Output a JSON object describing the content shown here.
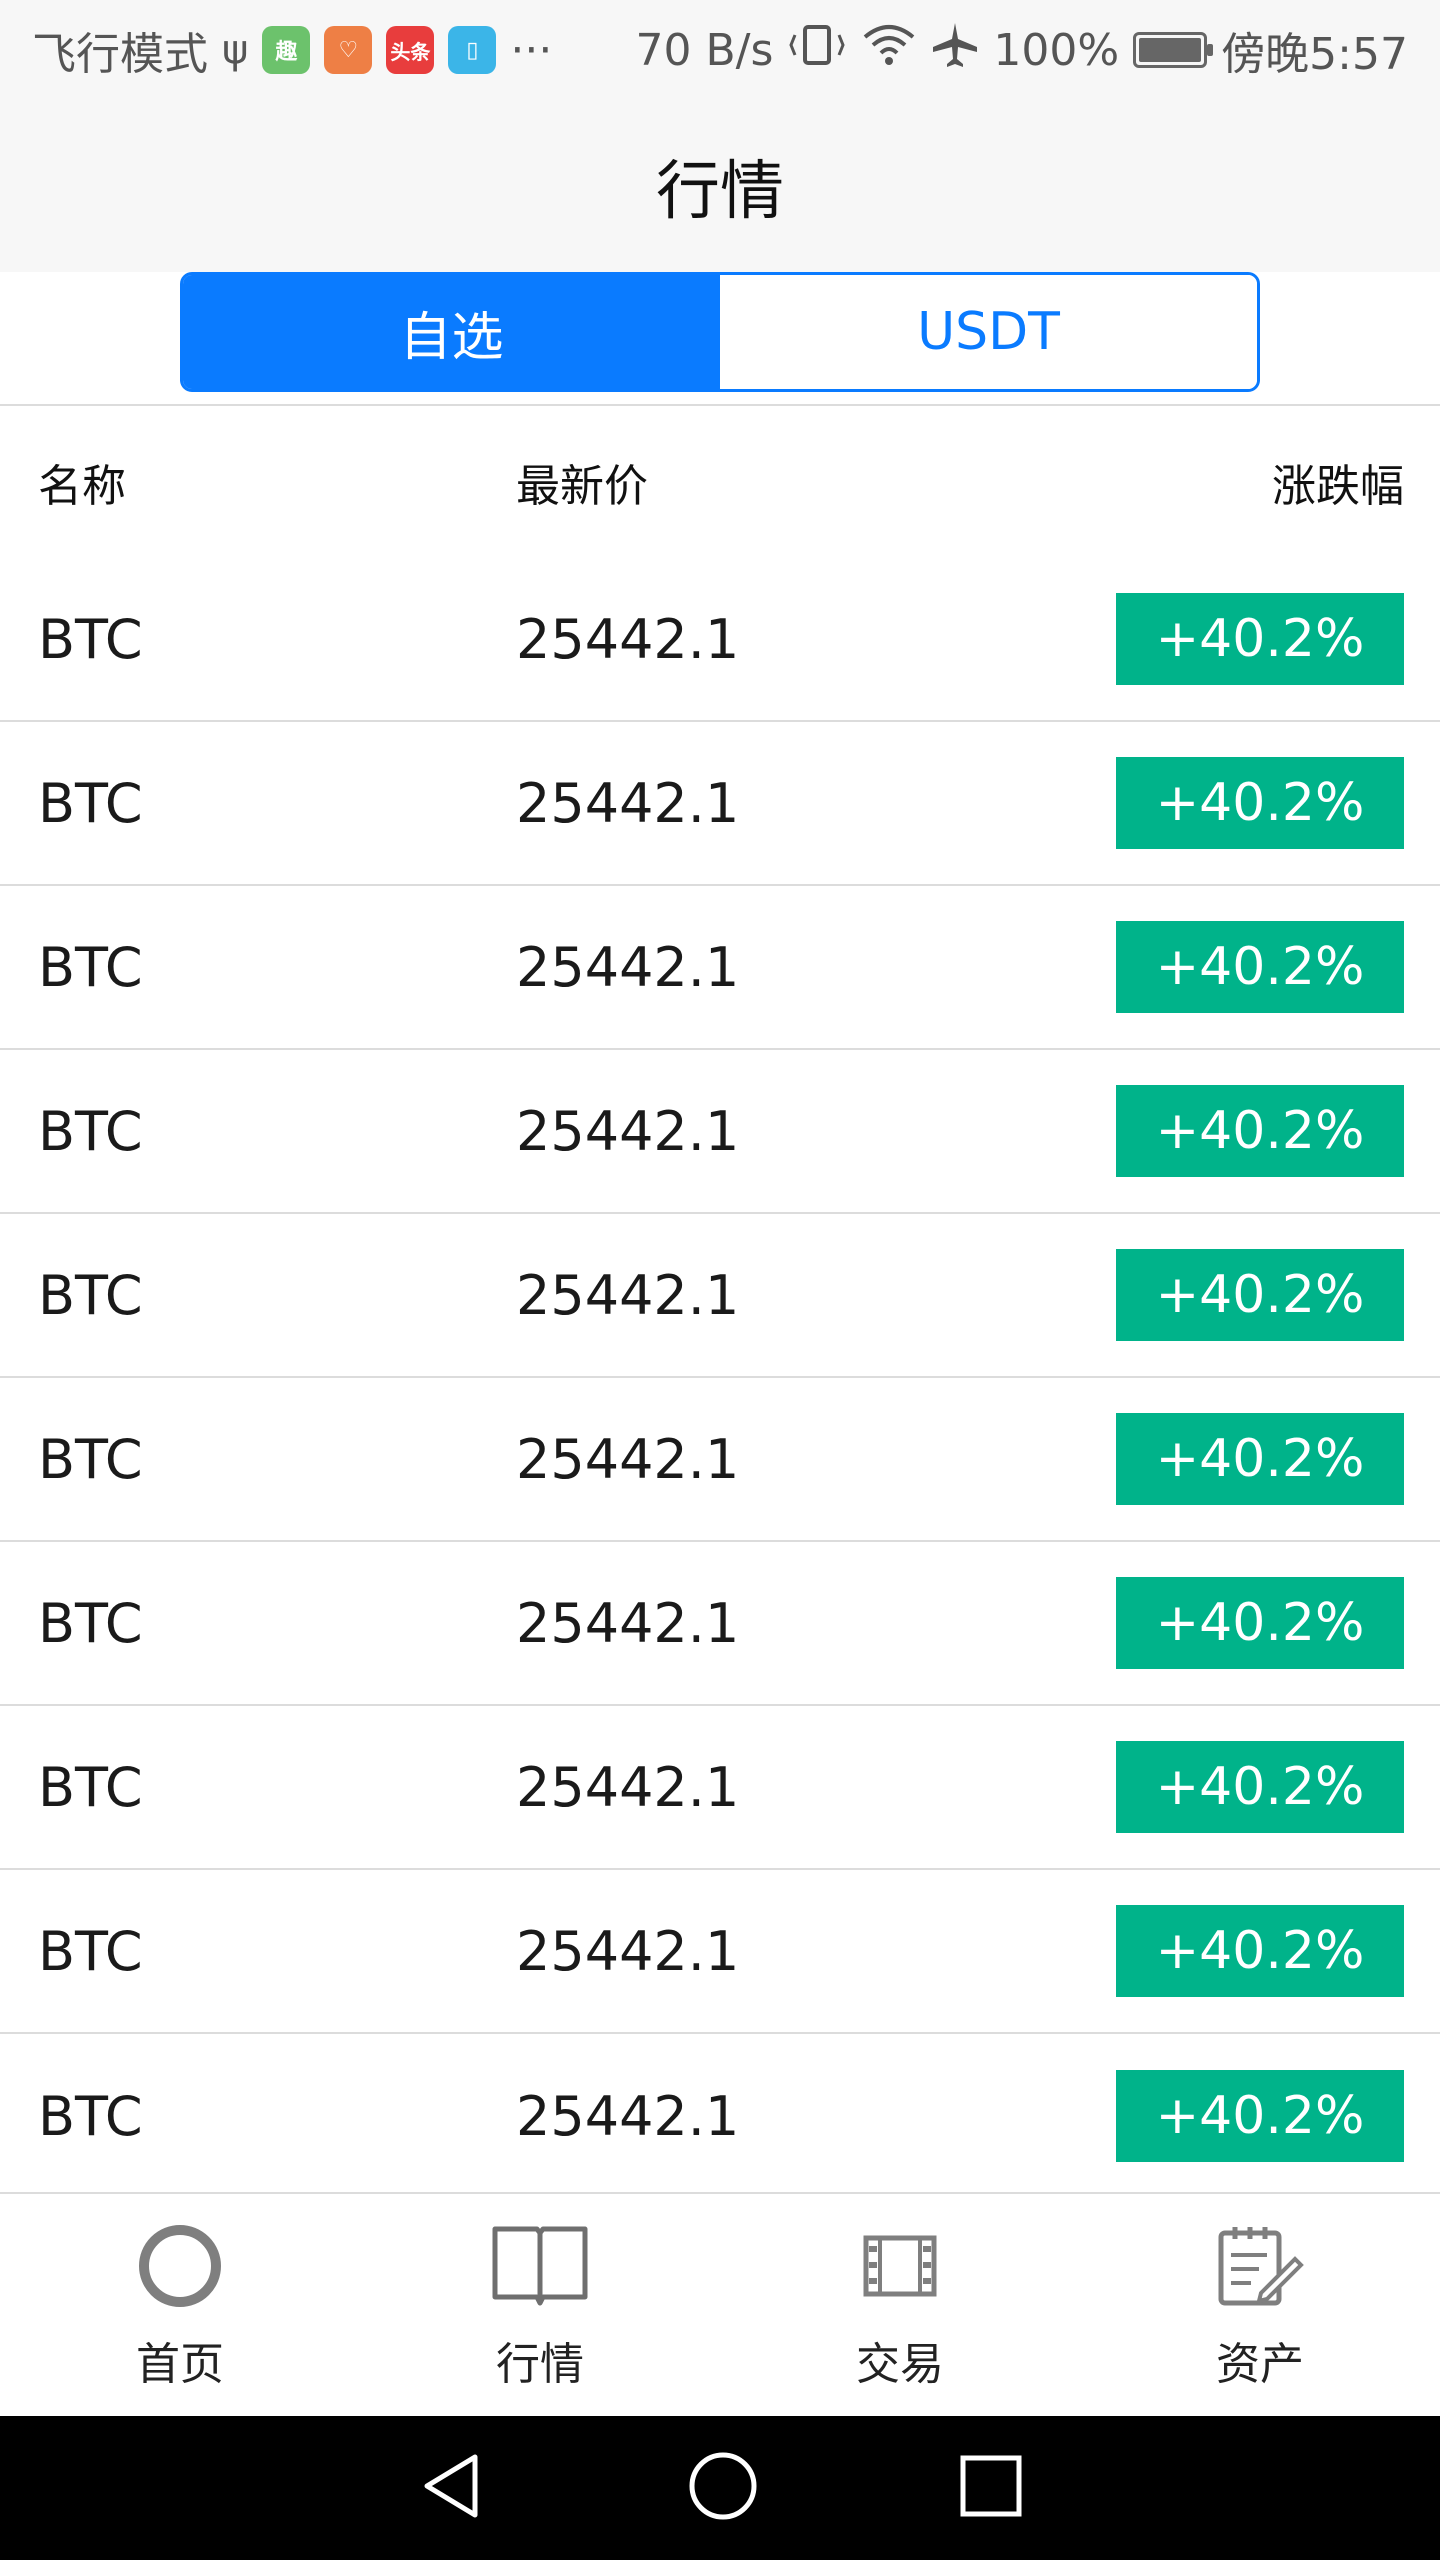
{
  "status_bar": {
    "left_text": "飞行模式",
    "app_icons": [
      {
        "name": "qu-app-icon",
        "glyph": "趣"
      },
      {
        "name": "heart-app-icon",
        "glyph": "♡"
      },
      {
        "name": "toutiao-app-icon",
        "glyph": "头条"
      },
      {
        "name": "book-app-icon",
        "glyph": "▯"
      }
    ],
    "more": "···",
    "net_speed": "70 B/s",
    "battery": "100%",
    "time": "傍晚5:57"
  },
  "header": {
    "title": "行情"
  },
  "segment": {
    "tabs": [
      {
        "label": "自选",
        "active": true
      },
      {
        "label": "USDT",
        "active": false
      }
    ],
    "accent_color": "#0a7bff"
  },
  "table": {
    "columns": [
      "名称",
      "最新价",
      "涨跌幅"
    ],
    "rows": [
      {
        "name": "BTC",
        "price": "25442.1",
        "change": "+40.2%"
      },
      {
        "name": "BTC",
        "price": "25442.1",
        "change": "+40.2%"
      },
      {
        "name": "BTC",
        "price": "25442.1",
        "change": "+40.2%"
      },
      {
        "name": "BTC",
        "price": "25442.1",
        "change": "+40.2%"
      },
      {
        "name": "BTC",
        "price": "25442.1",
        "change": "+40.2%"
      },
      {
        "name": "BTC",
        "price": "25442.1",
        "change": "+40.2%"
      },
      {
        "name": "BTC",
        "price": "25442.1",
        "change": "+40.2%"
      },
      {
        "name": "BTC",
        "price": "25442.1",
        "change": "+40.2%"
      },
      {
        "name": "BTC",
        "price": "25442.1",
        "change": "+40.2%"
      },
      {
        "name": "BTC",
        "price": "25442.1",
        "change": "+40.2%"
      }
    ],
    "up_color": "#00b38a"
  },
  "bottom_nav": {
    "items": [
      {
        "label": "首页",
        "icon": "circle-icon"
      },
      {
        "label": "行情",
        "icon": "book-icon"
      },
      {
        "label": "交易",
        "icon": "film-icon"
      },
      {
        "label": "资产",
        "icon": "notepad-icon"
      }
    ]
  },
  "system_nav": {
    "buttons": [
      "back-icon",
      "home-icon",
      "recents-icon"
    ]
  }
}
